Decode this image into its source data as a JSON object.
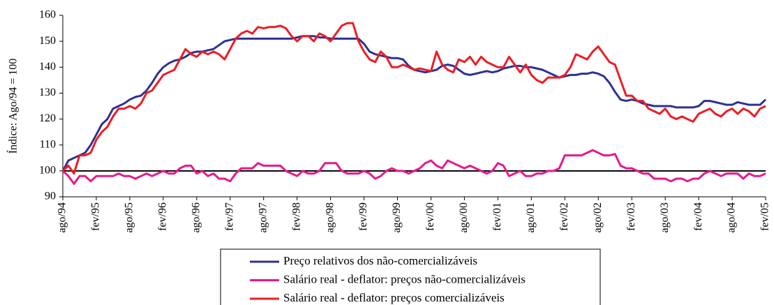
{
  "chart_data": {
    "type": "line",
    "ylabel": "Índice: Ago/94 = 100",
    "categories": [
      "ago/94",
      null,
      null,
      null,
      null,
      null,
      "fev/95",
      null,
      null,
      null,
      null,
      null,
      "ago/95",
      null,
      null,
      null,
      null,
      null,
      "fev/96",
      null,
      null,
      null,
      null,
      null,
      "ago/96",
      null,
      null,
      null,
      null,
      null,
      "fev/97",
      null,
      null,
      null,
      null,
      null,
      "ago/97",
      null,
      null,
      null,
      null,
      null,
      "fev/98",
      null,
      null,
      null,
      null,
      null,
      "ago/98",
      null,
      null,
      null,
      null,
      null,
      "fev/99",
      null,
      null,
      null,
      null,
      null,
      "ago/99",
      null,
      null,
      null,
      null,
      null,
      "fev/00",
      null,
      null,
      null,
      null,
      null,
      "ago/00",
      null,
      null,
      null,
      null,
      null,
      "fev/01",
      null,
      null,
      null,
      null,
      null,
      "ago/01",
      null,
      null,
      null,
      null,
      null,
      "fev/02",
      null,
      null,
      null,
      null,
      null,
      "ago/02",
      null,
      null,
      null,
      null,
      null,
      "fev/03",
      null,
      null,
      null,
      null,
      null,
      "ago/03",
      null,
      null,
      null,
      null,
      null,
      "fev/04",
      null,
      null,
      null,
      null,
      null,
      "ago/04",
      null,
      null,
      null,
      null,
      null,
      "fev/05"
    ],
    "series": [
      {
        "name": "Preço relativos dos não-comercializáveis",
        "color": "#2e3192",
        "values": [
          100,
          104,
          105,
          106,
          107,
          110,
          114,
          118,
          120,
          124,
          125,
          126,
          127.5,
          128.5,
          129,
          131,
          134,
          137.5,
          140,
          141.5,
          142.5,
          143,
          144,
          145.5,
          146,
          146,
          146.5,
          147,
          148.5,
          150,
          150.5,
          151,
          151,
          151,
          151,
          151,
          151,
          151,
          151,
          151,
          151,
          151,
          151.5,
          152,
          152,
          152,
          151.5,
          151.5,
          151,
          151,
          151,
          151,
          151,
          151,
          149,
          146,
          145,
          144.5,
          144,
          143.5,
          143.5,
          143,
          140.5,
          139,
          138.5,
          138,
          138.5,
          139,
          140.5,
          141,
          140.5,
          139,
          137.5,
          137,
          137.5,
          138,
          138.5,
          138,
          138.5,
          139.5,
          140,
          140.5,
          140.5,
          140,
          140,
          139.5,
          139,
          138,
          137,
          136,
          136.5,
          137,
          137,
          137.5,
          137.5,
          138,
          137.5,
          136.5,
          134,
          130.5,
          127.5,
          127,
          127.5,
          127,
          126,
          125.5,
          125,
          125,
          125,
          125,
          124.5,
          124.5,
          124.5,
          124.5,
          125,
          127,
          127,
          126.5,
          126,
          125.5,
          125.5,
          126.5,
          126,
          125.5,
          125.5,
          125.5,
          127.5
        ]
      },
      {
        "name": "Salário real - deflator: preços não-comercializáveis",
        "color": "#e6198c",
        "values": [
          100,
          98,
          95,
          98,
          98,
          96,
          98,
          98,
          98,
          98,
          99,
          98,
          98,
          97,
          98,
          99,
          98,
          99,
          100,
          99,
          99,
          101,
          102,
          102,
          99,
          100,
          98,
          99,
          97,
          97,
          96,
          99,
          101,
          101,
          101,
          103,
          102,
          102,
          102,
          102,
          100,
          99,
          98,
          100,
          99,
          99,
          100,
          103,
          103,
          103,
          100,
          99,
          99,
          99,
          100,
          99,
          97,
          98,
          100,
          101,
          100,
          100,
          99,
          100,
          101,
          103,
          104,
          102,
          101,
          104,
          103,
          102,
          101,
          102,
          101,
          100,
          99,
          100,
          103,
          102,
          98,
          99,
          100,
          98,
          98,
          99,
          99,
          100,
          100,
          101,
          106,
          106,
          106,
          106,
          107,
          108,
          107,
          106,
          106,
          106.5,
          102,
          101,
          101,
          100,
          99,
          99,
          97,
          97,
          97,
          96,
          97,
          97,
          96,
          97,
          97,
          99,
          100,
          99,
          98,
          99,
          99,
          99,
          97,
          99,
          98,
          98,
          99
        ]
      },
      {
        "name": "Salário real - deflator: preços comercializáveis",
        "color": "#ed1c24",
        "values": [
          100,
          102,
          99,
          106,
          106,
          107,
          112,
          115,
          117,
          121,
          124,
          124,
          125,
          124,
          126,
          130,
          131,
          134,
          137,
          138,
          139,
          143,
          147,
          145,
          144,
          146,
          145,
          146,
          145,
          143,
          147,
          151,
          153,
          154,
          153,
          155.5,
          155,
          155.5,
          155.5,
          156,
          155,
          152,
          150,
          152,
          152,
          150,
          153,
          152,
          150,
          153,
          156,
          157,
          157,
          150,
          146,
          143,
          142,
          146,
          144,
          140,
          140,
          141,
          140,
          139,
          139.5,
          139,
          138.5,
          146,
          141,
          139,
          138,
          143,
          142,
          144,
          141,
          144,
          142,
          141,
          140,
          140,
          144,
          141,
          138,
          141,
          137,
          135,
          134,
          136,
          136,
          136,
          137,
          140,
          145,
          144,
          143,
          146,
          148,
          145,
          142,
          141,
          135,
          129,
          129,
          127,
          127,
          124,
          123,
          122,
          124,
          121,
          120,
          121,
          120,
          119,
          122,
          123,
          124,
          122,
          121,
          123,
          124,
          122,
          124,
          123,
          121,
          124,
          125
        ]
      }
    ],
    "ylim": [
      90,
      160
    ],
    "yticks": [
      90,
      100,
      110,
      120,
      130,
      140,
      150,
      160
    ],
    "reference_line": 100,
    "grid": false
  }
}
